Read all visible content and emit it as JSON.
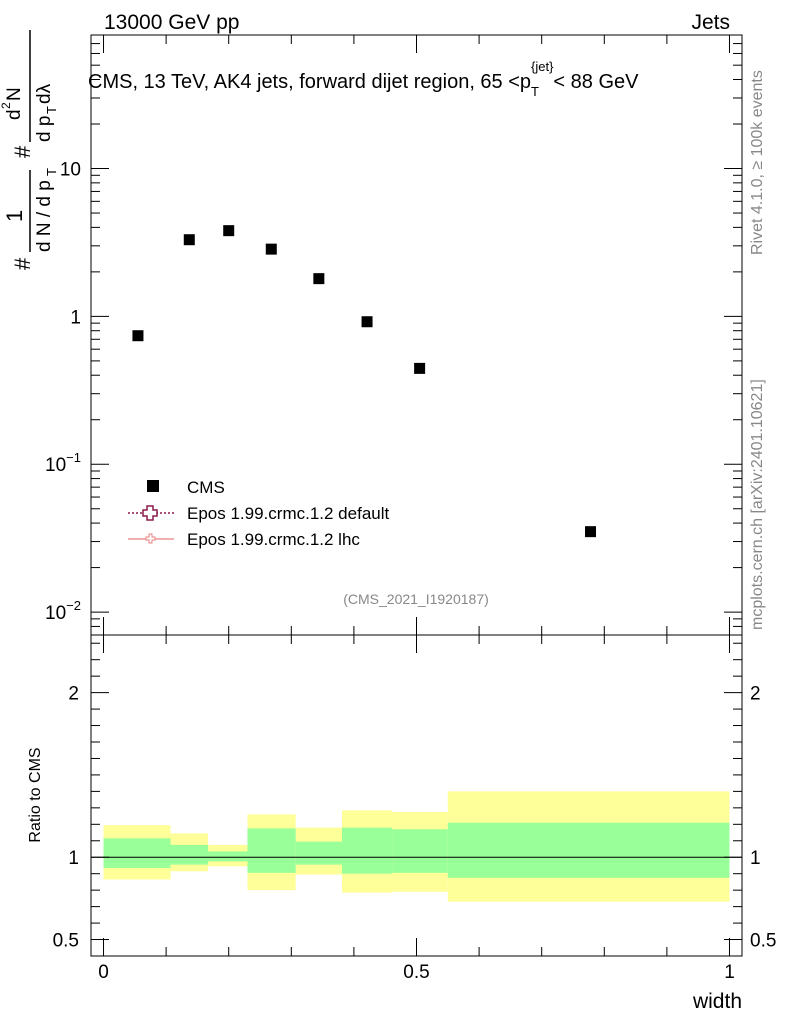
{
  "header": {
    "energy_label": "13000 GeV pp",
    "category_label": "Jets"
  },
  "side_text": {
    "rivet": "Rivet 4.1.0, ≥ 100k events",
    "mcplots": "mcplots.cern.ch [arXiv:2401.10621]"
  },
  "colors": {
    "data_marker": "#000000",
    "band_outer": "#ffff99",
    "band_inner": "#99ff99",
    "epos_default": "#8b1a4a",
    "epos_lhc": "#e88080"
  },
  "chart_data": [
    {
      "type": "scatter",
      "panel": "main",
      "title": "CMS, 13 TeV, AK4 jets, forward dijet region, 65 <p_T^{jet}< 88 GeV",
      "title_parts": {
        "main": "CMS, 13 TeV, AK4 jets, forward dijet region, 65 <p",
        "sub": "T",
        "sup": "{jet}",
        "tail": "< 88 GeV"
      },
      "ylabel": "1/(dN/dp_T) d^2N/(dp_T dλ)",
      "ylabel_parts": {
        "hash": "#",
        "one": "1",
        "denominator": "d N / d p",
        "denominator_sub": "T",
        "numerator": "d",
        "numerator_sup": "2",
        "numerator_tail": "N",
        "den2": "d p",
        "den2_sub": "T",
        "den2_tail": " dλ"
      },
      "yscale": "log",
      "ylim": [
        0.007,
        80
      ],
      "xlim": [
        -0.02,
        1.02
      ],
      "y_tick_labels": [
        {
          "value": 0.01,
          "base": "10",
          "exp": "−2"
        },
        {
          "value": 0.1,
          "base": "10",
          "exp": "−1"
        },
        {
          "value": 1,
          "base": "1",
          "exp": ""
        },
        {
          "value": 10,
          "base": "10",
          "exp": ""
        }
      ],
      "series": [
        {
          "name": "CMS",
          "marker": "square",
          "x": [
            0.055,
            0.137,
            0.2,
            0.268,
            0.344,
            0.421,
            0.505,
            0.778
          ],
          "y": [
            0.74,
            3.3,
            3.8,
            2.85,
            1.8,
            0.92,
            0.445,
            0.035
          ]
        }
      ],
      "legend": {
        "placement": "middle-left",
        "entries": [
          {
            "label": "CMS",
            "style": "square"
          },
          {
            "label": "Epos 1.99.crmc.1.2 default",
            "style": "dotted-open-cross"
          },
          {
            "label": "Epos 1.99.crmc.1.2 lhc",
            "style": "solid-cross"
          }
        ]
      },
      "annotation": "(CMS_2021_I1920187)"
    },
    {
      "type": "area",
      "panel": "ratio",
      "ylabel": "Ratio to CMS",
      "xlabel": "width",
      "ylim": [
        0.4,
        2.35
      ],
      "xlim": [
        -0.02,
        1.02
      ],
      "x_tick_labels": [
        {
          "value": 0,
          "label": "0"
        },
        {
          "value": 0.5,
          "label": "0.5"
        },
        {
          "value": 1,
          "label": "1"
        }
      ],
      "y_tick_labels": [
        {
          "value": 0.5,
          "label": "0.5"
        },
        {
          "value": 1,
          "label": "1"
        },
        {
          "value": 2,
          "label": "2"
        }
      ],
      "reference_line": 1,
      "bins": [
        {
          "x_low": 0.0,
          "x_high": 0.107,
          "outer": [
            0.865,
            1.195
          ],
          "inner": [
            0.935,
            1.115
          ]
        },
        {
          "x_low": 0.107,
          "x_high": 0.167,
          "outer": [
            0.915,
            1.145
          ],
          "inner": [
            0.955,
            1.075
          ]
        },
        {
          "x_low": 0.167,
          "x_high": 0.23,
          "outer": [
            0.945,
            1.075
          ],
          "inner": [
            0.975,
            1.035
          ]
        },
        {
          "x_low": 0.23,
          "x_high": 0.307,
          "outer": [
            0.8,
            1.26
          ],
          "inner": [
            0.905,
            1.175
          ]
        },
        {
          "x_low": 0.307,
          "x_high": 0.381,
          "outer": [
            0.895,
            1.18
          ],
          "inner": [
            0.955,
            1.095
          ]
        },
        {
          "x_low": 0.381,
          "x_high": 0.461,
          "outer": [
            0.785,
            1.285
          ],
          "inner": [
            0.9,
            1.18
          ]
        },
        {
          "x_low": 0.461,
          "x_high": 0.55,
          "outer": [
            0.79,
            1.275
          ],
          "inner": [
            0.905,
            1.17
          ]
        },
        {
          "x_low": 0.55,
          "x_high": 1.0,
          "outer": [
            0.73,
            1.4
          ],
          "inner": [
            0.875,
            1.21
          ]
        }
      ]
    }
  ]
}
